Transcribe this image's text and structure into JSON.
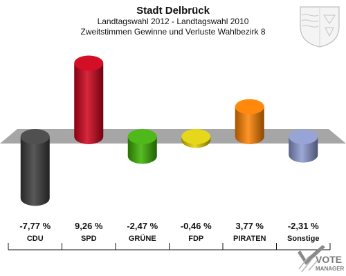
{
  "header": {
    "title": "Stadt Delbrück",
    "subtitle1": "Landtagswahl 2012 - Landtagswahl 2010",
    "subtitle2": "Zweitstimmen Gewinne und Verluste Wahlbezirk 8"
  },
  "logo": {
    "line1": "VOTE",
    "line2": "MANAGER",
    "icon": "vote-check-icon"
  },
  "crest": {
    "icon": "coat-of-arms-icon"
  },
  "chart_data": {
    "type": "bar",
    "categories": [
      "CDU",
      "SPD",
      "GRÜNE",
      "FDP",
      "PIRATEN",
      "Sonstige"
    ],
    "values": [
      -7.77,
      9.26,
      -2.47,
      -0.46,
      3.77,
      -2.31
    ],
    "value_labels": [
      "-7,77 %",
      "9,26 %",
      "-2,47 %",
      "-0,46 %",
      "3,77 %",
      "-2,31 %"
    ],
    "colors": [
      "#3c3c3c",
      "#d0021b",
      "#3bb000",
      "#e3d200",
      "#ff8200",
      "#8c9ad0"
    ],
    "title": "Stadt Delbrück",
    "xlabel": "",
    "ylabel": "",
    "grid": false
  }
}
